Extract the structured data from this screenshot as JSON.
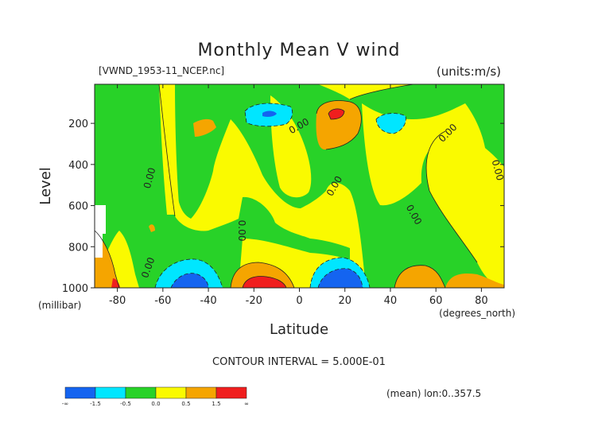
{
  "chart_data": {
    "type": "contour",
    "title": "Monthly Mean V wind",
    "file_label": "[VWND_1953-11_NCEP.nc]",
    "units_label": "(units:m/s)",
    "xlabel": "Latitude",
    "x_units": "(degrees_north)",
    "ylabel": "Level",
    "y_units": "(millibar)",
    "xlim": [
      -90,
      90
    ],
    "ylim": [
      1000,
      10
    ],
    "x_ticks": [
      -80,
      -60,
      -40,
      -20,
      0,
      20,
      40,
      60,
      80
    ],
    "y_ticks": [
      200,
      400,
      600,
      800,
      1000
    ],
    "contour_interval_text": "CONTOUR INTERVAL = 5.000E-01",
    "mean_text": "(mean) lon:0..357.5",
    "contour_labels": [
      "0.00",
      "0.00",
      "0.00",
      "0.00",
      "0.00",
      "0.00",
      "0.00",
      "0.00"
    ],
    "colorbar": {
      "colors": [
        "#1464f0",
        "#00e6ff",
        "#28d228",
        "#fafa00",
        "#f5a500",
        "#f01e1e"
      ],
      "tick_labels": [
        "-∞",
        "-1.5",
        "-0.5",
        "0.0",
        "0.5",
        "1.5",
        "∞"
      ]
    },
    "features": [
      {
        "lat": -45,
        "level": 980,
        "value": -1.5,
        "desc": "southern low-level negative core"
      },
      {
        "lat": -15,
        "level": 985,
        "value": 2.0,
        "desc": "strong positive near-surface core"
      },
      {
        "lat": 18,
        "level": 970,
        "value": -2.0,
        "desc": "strong negative near-surface core"
      },
      {
        "lat": 18,
        "level": 150,
        "value": 2.0,
        "desc": "upper-level positive core"
      },
      {
        "lat": -12,
        "level": 150,
        "value": -1.5,
        "desc": "upper-level negative core"
      },
      {
        "lat": 35,
        "level": 180,
        "value": -0.7,
        "desc": "upper-level weak negative"
      },
      {
        "lat": -45,
        "level": 200,
        "value": 0.6,
        "desc": "small positive patch"
      },
      {
        "lat": 50,
        "level": 970,
        "value": 0.8,
        "desc": "positive low-level patch"
      },
      {
        "lat": -88,
        "level": 990,
        "value": 1.5,
        "desc": "edge positive"
      }
    ]
  }
}
